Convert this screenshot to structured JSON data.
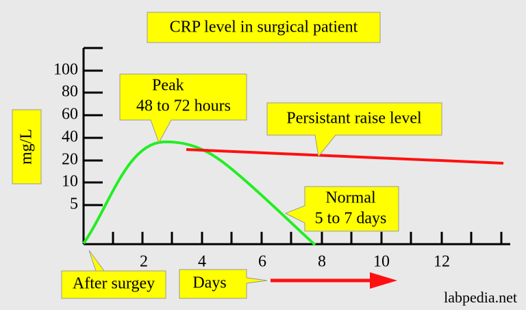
{
  "header": {
    "title": "CRP level in surgical patient"
  },
  "y_axis": {
    "label": "mg/L",
    "ticks": [
      "100",
      "80",
      "60",
      "40",
      "20",
      "10",
      "5"
    ]
  },
  "x_axis": {
    "label": "Days",
    "ticks": [
      "2",
      "4",
      "6",
      "8",
      "10",
      "12"
    ],
    "start_label": "After surgey"
  },
  "callouts": [
    {
      "text": "Peak"
    },
    {
      "text": "48 to 72 hours"
    },
    {
      "text": "Persistant raise level"
    },
    {
      "text": "Normal"
    },
    {
      "text": "5 to 7 days"
    }
  ],
  "watermark": "labpedia.net"
}
